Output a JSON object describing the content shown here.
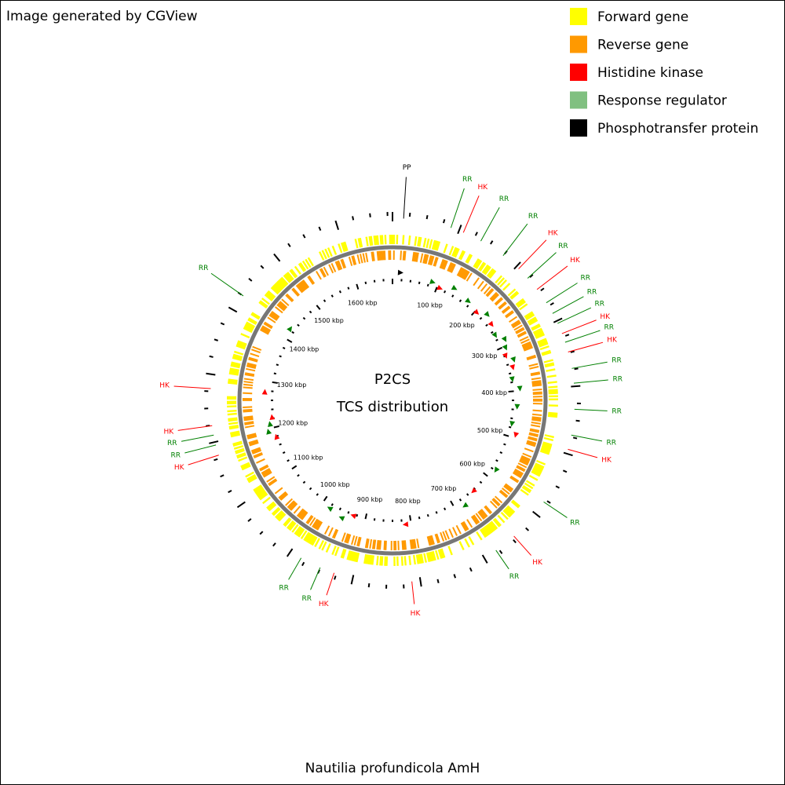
{
  "header": {
    "title": "Image generated by CGView"
  },
  "legend": [
    {
      "label": "Forward gene",
      "color": "#ffff00"
    },
    {
      "label": "Reverse gene",
      "color": "#ff9900"
    },
    {
      "label": "Histidine kinase",
      "color": "#ff0000"
    },
    {
      "label": "Response regulator",
      "color": "#80c080"
    },
    {
      "label": "Phosphotransfer protein",
      "color": "#000000"
    }
  ],
  "center": {
    "title": "P2CS",
    "subtitle": "TCS distribution"
  },
  "ticks": [
    "100 kbp",
    "200 kbp",
    "300 kbp",
    "400 kbp",
    "500 kbp",
    "600 kbp",
    "700 kbp",
    "800 kbp",
    "900 kbp",
    "1000 kbp",
    "1100 kbp",
    "1200 kbp",
    "1300 kbp",
    "1400 kbp",
    "1500 kbp",
    "1600 kbp"
  ],
  "features": [
    {
      "label": "PP",
      "color": "#000000"
    },
    {
      "label": "RR",
      "color": "#008000"
    },
    {
      "label": "HK",
      "color": "#ff0000"
    },
    {
      "label": "RR",
      "color": "#008000"
    },
    {
      "label": "RR",
      "color": "#008000"
    },
    {
      "label": "HK",
      "color": "#ff0000"
    },
    {
      "label": "RR",
      "color": "#008000"
    },
    {
      "label": "HK",
      "color": "#ff0000"
    },
    {
      "label": "RR",
      "color": "#008000"
    },
    {
      "label": "RR",
      "color": "#008000"
    },
    {
      "label": "RR",
      "color": "#008000"
    },
    {
      "label": "HK",
      "color": "#ff0000"
    },
    {
      "label": "RR",
      "color": "#008000"
    },
    {
      "label": "HK",
      "color": "#ff0000"
    },
    {
      "label": "RR",
      "color": "#008000"
    },
    {
      "label": "RR",
      "color": "#008000"
    },
    {
      "label": "RR",
      "color": "#008000"
    },
    {
      "label": "RR",
      "color": "#008000"
    },
    {
      "label": "HK",
      "color": "#ff0000"
    },
    {
      "label": "RR",
      "color": "#008000"
    },
    {
      "label": "HK",
      "color": "#ff0000"
    },
    {
      "label": "RR",
      "color": "#008000"
    },
    {
      "label": "HK",
      "color": "#ff0000"
    },
    {
      "label": "HK",
      "color": "#ff0000"
    },
    {
      "label": "RR",
      "color": "#008000"
    },
    {
      "label": "RR",
      "color": "#008000"
    },
    {
      "label": "HK",
      "color": "#ff0000"
    },
    {
      "label": "RR",
      "color": "#008000"
    },
    {
      "label": "RR",
      "color": "#008000"
    },
    {
      "label": "HK",
      "color": "#ff0000"
    },
    {
      "label": "HK",
      "color": "#ff0000"
    },
    {
      "label": "RR",
      "color": "#008000"
    }
  ],
  "footer": {
    "title": "Nautilia profundicola AmH"
  }
}
